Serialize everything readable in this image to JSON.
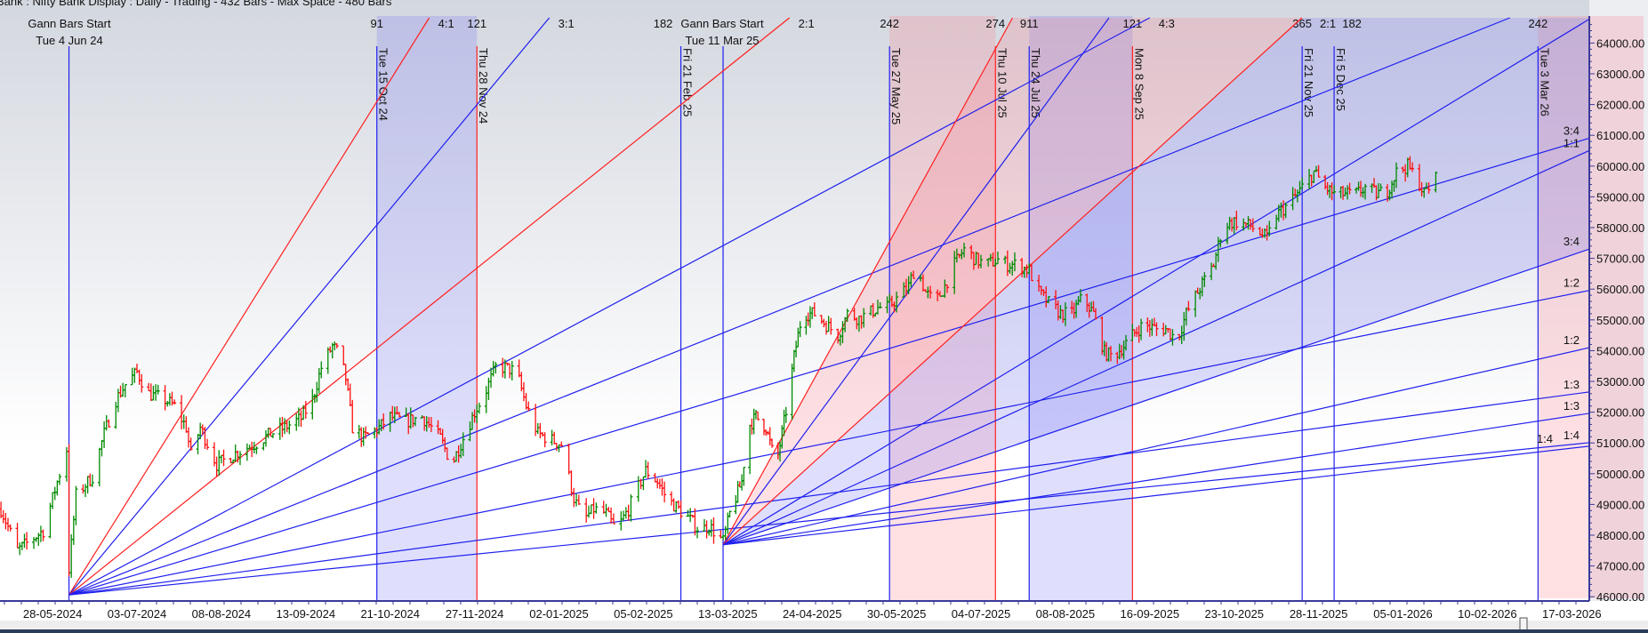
{
  "header": {
    "title": "Bank : Nifty Bank Display :  Daily  - Trading - 432 Bars -  Max Space - 480 Bars"
  },
  "colors": {
    "bull": "#008a00",
    "bear": "#ff1010",
    "blue_line": "#2020ee",
    "red_line": "#ff2020",
    "blue_fill": "rgba(110,110,245,0.22)",
    "pink_fill": "rgba(255,120,130,0.22)",
    "axis": "#3a3a9a",
    "bg_top": "#d3d7df",
    "bg_bottom": "#ffffff"
  },
  "gann_starts": [
    {
      "label": "Gann Bars Start",
      "date_label": "Tue 4 Jun 24",
      "date": "2024-06-04",
      "price": 46060
    },
    {
      "label": "Gann Bars Start",
      "date_label": "Tue 11 Mar 25",
      "date": "2025-03-11",
      "price": 47690
    }
  ],
  "vertical_lines": [
    {
      "date": "2024-10-15",
      "label": "Tue 15 Oct 24",
      "count": "91",
      "color": "blue"
    },
    {
      "date": "2024-11-28",
      "label": "Thu 28 Nov 24",
      "count": "121",
      "color": "red"
    },
    {
      "date": "2025-02-21",
      "label": "Fri 21 Feb 25",
      "count": "182",
      "color": "blue"
    },
    {
      "date": "2025-05-27",
      "label": "Tue 27 May 25",
      "count": "242",
      "color": "blue"
    },
    {
      "date": "2025-07-10",
      "label": "Thu 10 Jul 25",
      "count": "274",
      "color": "red"
    },
    {
      "date": "2025-07-24",
      "label": "Thu 24 Jul 25",
      "count": "911",
      "color": "blue"
    },
    {
      "date": "2025-09-08",
      "label": "Mon 8 Sep 25",
      "count": "121",
      "color": "red"
    },
    {
      "date": "2025-11-21",
      "label": "Fri 21 Nov 25",
      "count": "365",
      "color": "blue"
    },
    {
      "date": "2025-12-05",
      "label": "Fri 5 Dec 25",
      "count": "182",
      "color": "blue"
    },
    {
      "date": "2026-03-03",
      "label": "Tue 3 Mar 26",
      "count": "242",
      "color": "blue"
    }
  ],
  "bands": [
    {
      "from": "2024-10-15",
      "to": "2024-11-28",
      "color": "blue"
    },
    {
      "from": "2025-05-27",
      "to": "2025-07-10",
      "color": "pink"
    },
    {
      "from": "2025-07-24",
      "to": "2025-09-08",
      "color": "blue"
    },
    {
      "from": "2026-03-03",
      "to": "end",
      "color": "pink"
    }
  ],
  "fans": [
    {
      "start": 0,
      "points_per_bar": 44,
      "lines": [
        {
          "ratio": "4:1",
          "mult": 4,
          "color": "red",
          "label": true
        },
        {
          "ratio": "3:1",
          "mult": 3,
          "color": "blue",
          "label": true
        },
        {
          "ratio": "2:1",
          "mult": 2,
          "color": "red",
          "label": true
        },
        {
          "ratio": "4:3",
          "mult": 1.3333,
          "color": "blue",
          "label": true
        },
        {
          "ratio": "1:1",
          "mult": 1,
          "color": "blue",
          "label": false
        },
        {
          "ratio": "3:4",
          "mult": 0.75,
          "color": "blue",
          "label": true
        },
        {
          "ratio": "1:2",
          "mult": 0.5,
          "color": "blue",
          "label": true
        },
        {
          "ratio": "1:3",
          "mult": 0.3333,
          "color": "blue",
          "label": true
        },
        {
          "ratio": "1:4",
          "mult": 0.25,
          "color": "blue",
          "label": true
        }
      ]
    },
    {
      "start": 1,
      "points_per_bar": 50,
      "lines": [
        {
          "ratio": "4:1",
          "mult": 4,
          "color": "red",
          "label": false
        },
        {
          "ratio": "3:1",
          "mult": 3,
          "color": "blue",
          "label": false
        },
        {
          "ratio": "2:1",
          "mult": 2,
          "color": "red",
          "label": true
        },
        {
          "ratio": "4:3",
          "mult": 1.3333,
          "color": "blue",
          "label": false
        },
        {
          "ratio": "1:1",
          "mult": 1,
          "color": "blue",
          "label": true
        },
        {
          "ratio": "3:4",
          "mult": 0.75,
          "color": "blue",
          "label": true
        },
        {
          "ratio": "1:2",
          "mult": 0.5,
          "color": "blue",
          "label": true
        },
        {
          "ratio": "1:3",
          "mult": 0.3333,
          "color": "blue",
          "label": true
        },
        {
          "ratio": "1:4",
          "mult": 0.25,
          "color": "blue",
          "label": true
        }
      ]
    }
  ],
  "fan_fills": [
    {
      "fan": 1,
      "upper": "4:1",
      "lower": "2:1",
      "color": "pink"
    },
    {
      "fan": 1,
      "upper": "2:1",
      "lower": "3:4",
      "color": "blue"
    }
  ],
  "chart_data": {
    "type": "ohlc",
    "ylim": [
      45860,
      64820
    ],
    "y_ticks": [
      46000,
      47000,
      48000,
      49000,
      50000,
      51000,
      52000,
      53000,
      54000,
      55000,
      56000,
      57000,
      58000,
      59000,
      60000,
      61000,
      62000,
      63000,
      64000
    ],
    "x_ticks": [
      "28-05-2024",
      "03-07-2024",
      "08-08-2024",
      "13-09-2024",
      "21-10-2024",
      "27-11-2024",
      "02-01-2025",
      "05-02-2025",
      "13-03-2025",
      "24-04-2025",
      "30-05-2025",
      "04-07-2025",
      "08-08-2025",
      "16-09-2025",
      "23-10-2025",
      "28-11-2025",
      "05-01-2026",
      "10-02-2026",
      "17-03-2026"
    ],
    "close_path": [
      [
        "2024-05-06",
        48850
      ],
      [
        "2024-05-13",
        47500
      ],
      [
        "2024-05-24",
        48150
      ],
      [
        "2024-05-28",
        49200
      ],
      [
        "2024-06-03",
        50800
      ],
      [
        "2024-06-04",
        46900
      ],
      [
        "2024-06-07",
        49300
      ],
      [
        "2024-06-14",
        49900
      ],
      [
        "2024-06-19",
        51300
      ],
      [
        "2024-06-24",
        52400
      ],
      [
        "2024-06-28",
        52900
      ],
      [
        "2024-07-03",
        53300
      ],
      [
        "2024-07-08",
        52600
      ],
      [
        "2024-07-15",
        52400
      ],
      [
        "2024-07-19",
        52200
      ],
      [
        "2024-07-24",
        51500
      ],
      [
        "2024-07-26",
        50600
      ],
      [
        "2024-07-30",
        51500
      ],
      [
        "2024-08-06",
        50300
      ],
      [
        "2024-08-15",
        50700
      ],
      [
        "2024-08-22",
        50950
      ],
      [
        "2024-08-29",
        51300
      ],
      [
        "2024-09-04",
        51500
      ],
      [
        "2024-09-11",
        51800
      ],
      [
        "2024-09-16",
        52400
      ],
      [
        "2024-09-20",
        53450
      ],
      [
        "2024-09-25",
        54150
      ],
      [
        "2024-09-28",
        53900
      ],
      [
        "2024-10-01",
        53100
      ],
      [
        "2024-10-04",
        51500
      ],
      [
        "2024-10-09",
        51150
      ],
      [
        "2024-10-16",
        51500
      ],
      [
        "2024-10-21",
        51850
      ],
      [
        "2024-10-28",
        51700
      ],
      [
        "2024-11-04",
        51850
      ],
      [
        "2024-11-08",
        51500
      ],
      [
        "2024-11-12",
        51150
      ],
      [
        "2024-11-17",
        50300
      ],
      [
        "2024-11-22",
        51150
      ],
      [
        "2024-11-27",
        52000
      ],
      [
        "2024-12-01",
        52550
      ],
      [
        "2024-12-06",
        53450
      ],
      [
        "2024-12-10",
        53450
      ],
      [
        "2024-12-15",
        53300
      ],
      [
        "2024-12-19",
        52200
      ],
      [
        "2024-12-24",
        51300
      ],
      [
        "2025-01-03",
        50950
      ],
      [
        "2025-01-08",
        49200
      ],
      [
        "2025-01-12",
        48500
      ],
      [
        "2025-01-16",
        48850
      ],
      [
        "2025-01-21",
        48700
      ],
      [
        "2025-01-25",
        48150
      ],
      [
        "2025-01-30",
        48850
      ],
      [
        "2025-02-02",
        49400
      ],
      [
        "2025-02-06",
        50100
      ],
      [
        "2025-02-11",
        49750
      ],
      [
        "2025-02-15",
        49200
      ],
      [
        "2025-02-20",
        48850
      ],
      [
        "2025-02-25",
        48500
      ],
      [
        "2025-03-01",
        48150
      ],
      [
        "2025-03-05",
        48300
      ],
      [
        "2025-03-11",
        47800
      ],
      [
        "2025-03-14",
        48700
      ],
      [
        "2025-03-20",
        49750
      ],
      [
        "2025-03-23",
        51500
      ],
      [
        "2025-03-27",
        51850
      ],
      [
        "2025-04-01",
        51500
      ],
      [
        "2025-04-06",
        50250
      ],
      [
        "2025-04-08",
        50950
      ],
      [
        "2025-04-12",
        52400
      ],
      [
        "2025-04-15",
        53800
      ],
      [
        "2025-04-19",
        55200
      ],
      [
        "2025-04-25",
        55200
      ],
      [
        "2025-04-30",
        54850
      ],
      [
        "2025-05-05",
        54500
      ],
      [
        "2025-05-09",
        55200
      ],
      [
        "2025-05-14",
        55050
      ],
      [
        "2025-05-18",
        55200
      ],
      [
        "2025-05-22",
        55400
      ],
      [
        "2025-05-26",
        55400
      ],
      [
        "2025-05-31",
        55750
      ],
      [
        "2025-06-04",
        56100
      ],
      [
        "2025-06-07",
        56800
      ],
      [
        "2025-06-11",
        55900
      ],
      [
        "2025-06-15",
        55550
      ],
      [
        "2025-06-19",
        56100
      ],
      [
        "2025-06-23",
        56800
      ],
      [
        "2025-06-27",
        57300
      ],
      [
        "2025-07-02",
        56950
      ],
      [
        "2025-07-06",
        56800
      ],
      [
        "2025-07-11",
        56950
      ],
      [
        "2025-07-15",
        56800
      ],
      [
        "2025-07-19",
        56800
      ],
      [
        "2025-07-24",
        56600
      ],
      [
        "2025-07-28",
        55900
      ],
      [
        "2025-08-01",
        55550
      ],
      [
        "2025-08-06",
        55200
      ],
      [
        "2025-08-11",
        55200
      ],
      [
        "2025-08-16",
        55750
      ],
      [
        "2025-08-21",
        55200
      ],
      [
        "2025-08-26",
        53950
      ],
      [
        "2025-08-30",
        53800
      ],
      [
        "2025-09-04",
        54150
      ],
      [
        "2025-09-08",
        54500
      ],
      [
        "2025-09-13",
        54850
      ],
      [
        "2025-09-19",
        54700
      ],
      [
        "2025-09-23",
        54700
      ],
      [
        "2025-09-28",
        54350
      ],
      [
        "2025-10-02",
        55200
      ],
      [
        "2025-10-07",
        55900
      ],
      [
        "2025-10-14",
        56800
      ],
      [
        "2025-10-18",
        58050
      ],
      [
        "2025-10-23",
        58200
      ],
      [
        "2025-10-30",
        58050
      ],
      [
        "2025-11-06",
        57650
      ],
      [
        "2025-11-10",
        58400
      ],
      [
        "2025-11-15",
        58750
      ],
      [
        "2025-11-19",
        59100
      ],
      [
        "2025-11-26",
        59800
      ],
      [
        "2025-12-01",
        59300
      ],
      [
        "2025-12-05",
        59100
      ],
      [
        "2025-12-15",
        59100
      ],
      [
        "2025-12-19",
        59300
      ],
      [
        "2025-12-24",
        59100
      ],
      [
        "2025-12-29",
        59200
      ],
      [
        "2026-01-02",
        59800
      ],
      [
        "2026-01-07",
        60000
      ],
      [
        "2026-01-12",
        59450
      ],
      [
        "2026-01-14",
        59100
      ],
      [
        "2026-01-19",
        59600
      ]
    ]
  }
}
